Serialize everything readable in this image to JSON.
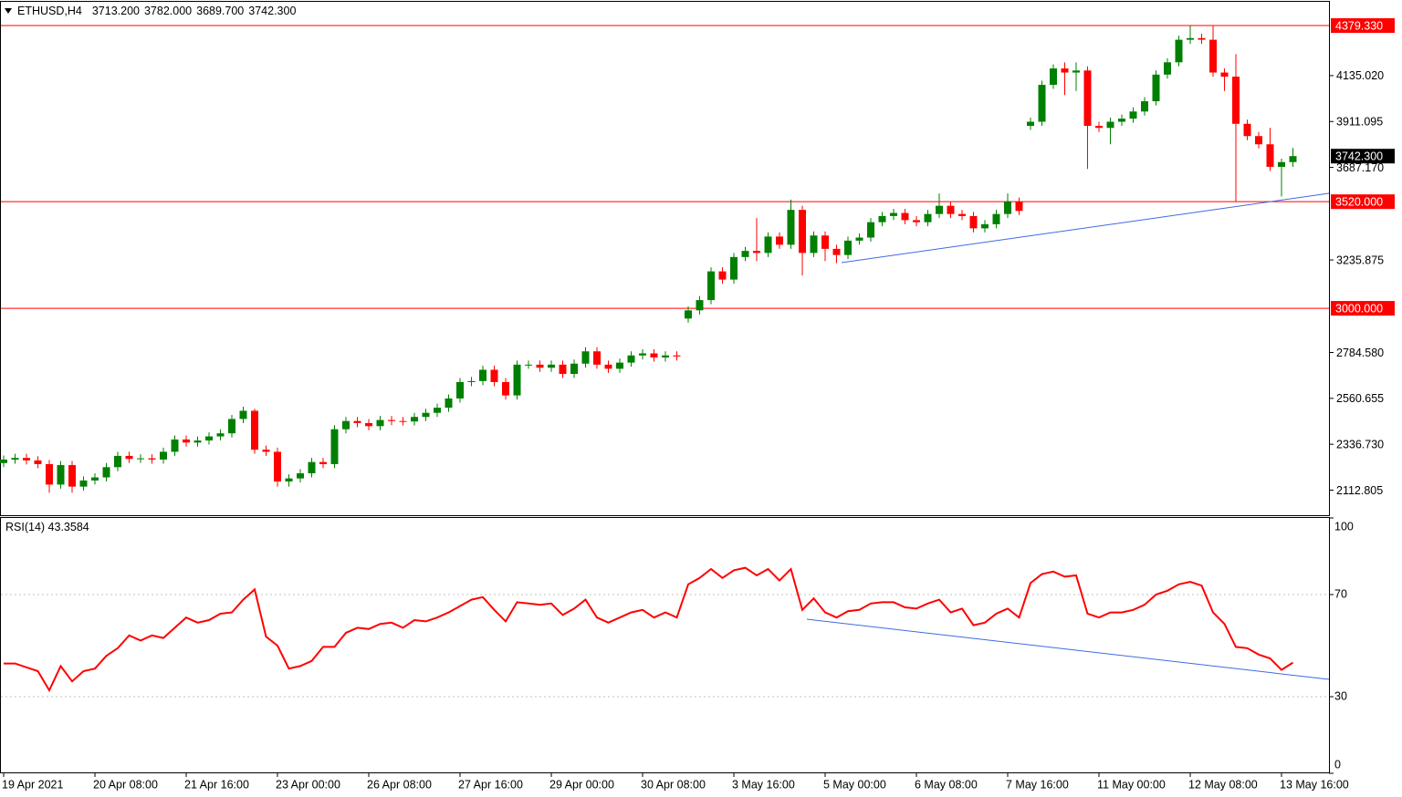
{
  "chart_data": [
    {
      "type": "candlestick",
      "title": "ETHUSD,H4",
      "ohlc_labels": [
        "3713.200",
        "3782.000",
        "3689.700",
        "3742.300"
      ],
      "categories": [
        "19 Apr 2021",
        null,
        null,
        null,
        null,
        null,
        null,
        null,
        "20 Apr 08:00",
        null,
        null,
        null,
        null,
        null,
        null,
        null,
        "21 Apr 16:00",
        null,
        null,
        null,
        null,
        null,
        null,
        null,
        "23 Apr 00:00",
        null,
        null,
        null,
        null,
        null,
        null,
        null,
        "26 Apr 08:00",
        null,
        null,
        null,
        null,
        null,
        null,
        null,
        "27 Apr 16:00",
        null,
        null,
        null,
        null,
        null,
        null,
        null,
        "29 Apr 00:00",
        null,
        null,
        null,
        null,
        null,
        null,
        null,
        "30 Apr 08:00",
        null,
        null,
        null,
        null,
        null,
        null,
        null,
        "3 May 16:00",
        null,
        null,
        null,
        null,
        null,
        null,
        null,
        "5 May 00:00",
        null,
        null,
        null,
        null,
        null,
        null,
        null,
        "6 May 08:00",
        null,
        null,
        null,
        null,
        null,
        null,
        null,
        "7 May 16:00",
        null,
        null,
        null,
        null,
        null,
        null,
        null,
        "11 May 00:00",
        null,
        null,
        null,
        null,
        null,
        null,
        null,
        "12 May 08:00",
        null,
        null,
        null,
        null,
        null,
        null,
        null,
        "13 May 16:00",
        null
      ],
      "open": [
        2245,
        2262,
        2270,
        2258,
        2240,
        2140,
        2235,
        2130,
        2160,
        2175,
        2225,
        2280,
        2265,
        2268,
        2262,
        2300,
        2360,
        2345,
        2355,
        2375,
        2390,
        2460,
        2500,
        2310,
        2300,
        2155,
        2170,
        2195,
        2250,
        2240,
        2410,
        2450,
        2440,
        2425,
        2455,
        2450,
        2448,
        2470,
        2490,
        2515,
        2560,
        2640,
        2645,
        2700,
        2640,
        2575,
        2725,
        2725,
        2710,
        2725,
        2680,
        2730,
        2790,
        2725,
        2705,
        2735,
        2770,
        2780,
        2760,
        2770,
        2950,
        2990,
        3040,
        3180,
        3140,
        3250,
        3280,
        3270,
        3350,
        3310,
        3480,
        3270,
        3355,
        3290,
        3260,
        3330,
        3345,
        3420,
        3450,
        3465,
        3430,
        3420,
        3460,
        3500,
        3460,
        3450,
        3390,
        3410,
        3460,
        3520,
        3890,
        3910,
        4090,
        4170,
        4150,
        4160,
        3890,
        3880,
        3910,
        3925,
        3960,
        4010,
        4140,
        4200,
        4310,
        4318,
        4310,
        4150,
        4130,
        3900,
        3840,
        3800,
        3690,
        3713.2
      ],
      "high": [
        2282,
        2290,
        2290,
        2278,
        2260,
        2255,
        2255,
        2180,
        2195,
        2245,
        2300,
        2300,
        2288,
        2288,
        2320,
        2380,
        2380,
        2375,
        2395,
        2410,
        2480,
        2520,
        2510,
        2330,
        2320,
        2190,
        2215,
        2270,
        2270,
        2430,
        2470,
        2470,
        2460,
        2475,
        2475,
        2470,
        2490,
        2510,
        2535,
        2580,
        2660,
        2665,
        2720,
        2720,
        2660,
        2745,
        2745,
        2745,
        2745,
        2745,
        2750,
        2810,
        2810,
        2745,
        2755,
        2790,
        2800,
        2800,
        2790,
        2790,
        3010,
        3060,
        3200,
        3200,
        3270,
        3300,
        3440,
        3370,
        3370,
        3530,
        3500,
        3375,
        3375,
        3310,
        3350,
        3365,
        3440,
        3470,
        3485,
        3485,
        3450,
        3480,
        3560,
        3520,
        3480,
        3470,
        3430,
        3480,
        3560,
        3540,
        3930,
        4110,
        4190,
        4200,
        4200,
        4180,
        3910,
        3930,
        3945,
        3980,
        4030,
        4160,
        4220,
        4330,
        4379.33,
        4340,
        4379.33,
        4170,
        4240,
        3920,
        3860,
        3880,
        3730,
        3782
      ],
      "low": [
        2225,
        2242,
        2238,
        2220,
        2100,
        2120,
        2100,
        2110,
        2140,
        2155,
        2205,
        2245,
        2245,
        2242,
        2242,
        2280,
        2325,
        2325,
        2335,
        2355,
        2370,
        2440,
        2290,
        2280,
        2130,
        2130,
        2150,
        2175,
        2220,
        2220,
        2390,
        2420,
        2405,
        2405,
        2430,
        2428,
        2428,
        2450,
        2470,
        2495,
        2540,
        2620,
        2625,
        2620,
        2555,
        2555,
        2705,
        2690,
        2690,
        2660,
        2660,
        2710,
        2705,
        2685,
        2685,
        2715,
        2750,
        2740,
        2740,
        2745,
        2930,
        2970,
        3020,
        3120,
        3120,
        3230,
        3230,
        3250,
        3290,
        3290,
        3160,
        3250,
        3230,
        3220,
        3240,
        3310,
        3325,
        3400,
        3430,
        3410,
        3400,
        3400,
        3440,
        3440,
        3430,
        3370,
        3370,
        3390,
        3440,
        3455,
        3870,
        3890,
        4070,
        4040,
        4060,
        3680,
        3860,
        3800,
        3890,
        3905,
        3940,
        3990,
        4120,
        4180,
        4290,
        4290,
        4130,
        4060,
        3520,
        3820,
        3780,
        3670,
        3545,
        3689.7
      ],
      "close": [
        2262,
        2270,
        2258,
        2240,
        2140,
        2235,
        2130,
        2160,
        2175,
        2225,
        2280,
        2265,
        2268,
        2262,
        2300,
        2360,
        2345,
        2355,
        2375,
        2390,
        2460,
        2500,
        2310,
        2300,
        2155,
        2170,
        2195,
        2250,
        2240,
        2410,
        2450,
        2440,
        2425,
        2455,
        2450,
        2448,
        2470,
        2490,
        2515,
        2560,
        2640,
        2645,
        2700,
        2640,
        2575,
        2725,
        2725,
        2710,
        2725,
        2680,
        2730,
        2790,
        2725,
        2705,
        2735,
        2770,
        2780,
        2760,
        2770,
        2765,
        2990,
        3040,
        3180,
        3140,
        3250,
        3280,
        3270,
        3350,
        3310,
        3480,
        3270,
        3355,
        3290,
        3260,
        3330,
        3345,
        3420,
        3450,
        3465,
        3430,
        3420,
        3460,
        3500,
        3460,
        3450,
        3390,
        3410,
        3460,
        3520,
        3475,
        3910,
        4090,
        4170,
        4150,
        4160,
        3890,
        3880,
        3910,
        3925,
        3960,
        4010,
        4140,
        4200,
        4310,
        4318,
        4310,
        4150,
        4130,
        3900,
        3840,
        3800,
        3690,
        3713.2,
        3742.3
      ],
      "up_color": "#008000",
      "down_color": "#ff0000",
      "ylim": [
        1990.5,
        4495
      ],
      "yticks": [
        {
          "value": 4135.02,
          "label": "4135.020"
        },
        3911.095,
        {
          "value": 3687.17,
          "label": "3687.170"
        },
        3235.875,
        {
          "value": 2784.58,
          "label": "2784.580"
        },
        2560.655,
        {
          "value": 2336.73,
          "label": "2336.730"
        },
        2112.805
      ],
      "hlines": [
        {
          "value": 4379.33,
          "label": "4379.330"
        },
        {
          "value": 3520,
          "label": "3520.000"
        },
        {
          "value": 3000,
          "label": "3000.000"
        }
      ],
      "hline_color": "#ff0000",
      "last_price": {
        "value": 3742.3,
        "label": "3742.300"
      }
    },
    {
      "type": "line",
      "title": "RSI(14) 43.3584",
      "color": "#ff0000",
      "values": [
        43,
        43,
        41.5,
        40,
        32.5,
        42,
        36,
        40,
        41,
        46,
        49,
        54,
        52,
        54,
        53,
        57,
        61,
        59,
        60,
        62.5,
        63,
        68,
        72,
        53.5,
        50,
        41,
        42,
        44,
        49.5,
        49.5,
        55,
        57,
        56.5,
        58.5,
        59,
        57,
        60,
        59.5,
        61,
        63,
        65.5,
        68,
        69,
        64,
        59.5,
        67,
        66.5,
        66,
        66.5,
        62,
        64.5,
        68,
        61,
        59,
        61,
        63,
        64,
        61,
        63,
        61,
        74,
        76.5,
        80,
        76.5,
        79.5,
        80.5,
        77.5,
        80,
        75.5,
        80,
        64,
        68.5,
        63,
        61,
        63.5,
        64,
        66.5,
        67,
        67,
        65,
        64.5,
        66.5,
        68,
        63,
        64.5,
        58,
        59,
        62.5,
        64.5,
        61,
        74.5,
        78,
        79,
        77,
        77.5,
        62.5,
        61,
        63,
        63,
        64,
        66,
        70,
        71.5,
        74,
        75,
        73.5,
        63,
        58.5,
        49.5,
        49,
        46.5,
        45,
        40.5,
        43.3584
      ],
      "ylim": [
        0,
        100
      ],
      "yticks": [
        100,
        70,
        30,
        0
      ],
      "levels": [
        70,
        30
      ]
    }
  ]
}
